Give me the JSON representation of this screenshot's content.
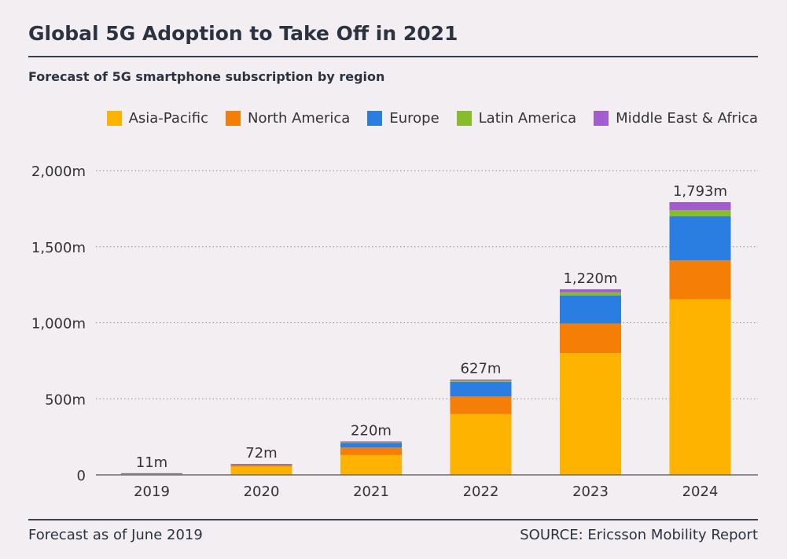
{
  "title": "Global 5G Adoption to Take Off in 2021",
  "subtitle": "Forecast of 5G smartphone subscription by region",
  "footer_note": "Forecast as of June 2019",
  "source": "SOURCE: Ericsson Mobility Report",
  "colors": {
    "Asia-Pacific": "#fdb300",
    "North America": "#f57f06",
    "Europe": "#2a7de1",
    "Latin America": "#86be2b",
    "Middle East & Africa": "#a35ccf",
    "grid": "#8a8a8a",
    "axis": "#6b6b6b"
  },
  "chart_data": {
    "type": "bar",
    "stacked": true,
    "categories": [
      "2019",
      "2020",
      "2021",
      "2022",
      "2023",
      "2024"
    ],
    "series": [
      {
        "name": "Asia-Pacific",
        "values": [
          8,
          55,
          130,
          400,
          800,
          1155
        ]
      },
      {
        "name": "North America",
        "values": [
          2,
          10,
          50,
          115,
          195,
          255
        ]
      },
      {
        "name": "Europe",
        "values": [
          1,
          5,
          30,
          95,
          185,
          290
        ]
      },
      {
        "name": "Latin America",
        "values": [
          0,
          1,
          4,
          9,
          20,
          40
        ]
      },
      {
        "name": "Middle East & Africa",
        "values": [
          0,
          1,
          6,
          8,
          20,
          53
        ]
      }
    ],
    "totals": [
      11,
      72,
      220,
      627,
      1220,
      1793
    ],
    "total_labels": [
      "11m",
      "72m",
      "220m",
      "627m",
      "1,220m",
      "1,793m"
    ],
    "ylim": [
      0,
      2000
    ],
    "yticks": [
      0,
      500,
      1000,
      1500,
      2000
    ],
    "ytick_labels": [
      "0",
      "500m",
      "1,000m",
      "1,500m",
      "2,000m"
    ],
    "grid": true,
    "legend_position": "top-right"
  }
}
